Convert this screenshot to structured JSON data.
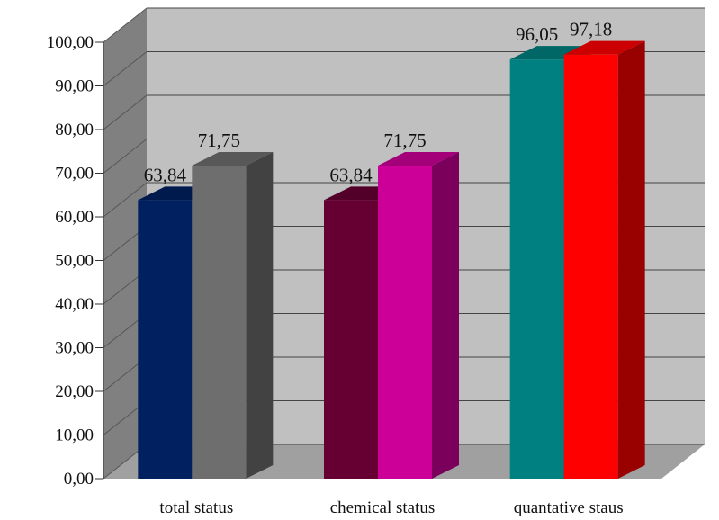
{
  "chart_data": {
    "type": "bar",
    "categories": [
      "total status",
      "chemical status",
      "quantative staus"
    ],
    "groups": [
      {
        "category": "total status",
        "bars": [
          {
            "value": 63.84,
            "label": "63,84",
            "color": "#002060"
          },
          {
            "value": 71.75,
            "label": "71,75",
            "color": "#6e6e6e"
          }
        ]
      },
      {
        "category": "chemical status",
        "bars": [
          {
            "value": 63.84,
            "label": "63,84",
            "color": "#660033"
          },
          {
            "value": 71.75,
            "label": "71,75",
            "color": "#cc0099"
          }
        ]
      },
      {
        "category": "quantative staus",
        "bars": [
          {
            "value": 96.05,
            "label": "96,05",
            "color": "#008080"
          },
          {
            "value": 97.18,
            "label": "97,18",
            "color": "#ff0000"
          }
        ]
      }
    ],
    "yticks": [
      "0,00",
      "10,00",
      "20,00",
      "30,00",
      "40,00",
      "50,00",
      "60,00",
      "70,00",
      "80,00",
      "90,00",
      "100,00"
    ],
    "ylim": [
      0,
      100
    ],
    "grid": true,
    "legend": "none",
    "wall_color": "#c0c0c0",
    "side_wall_color": "#808080",
    "floor_color": "#a0a0a0"
  }
}
